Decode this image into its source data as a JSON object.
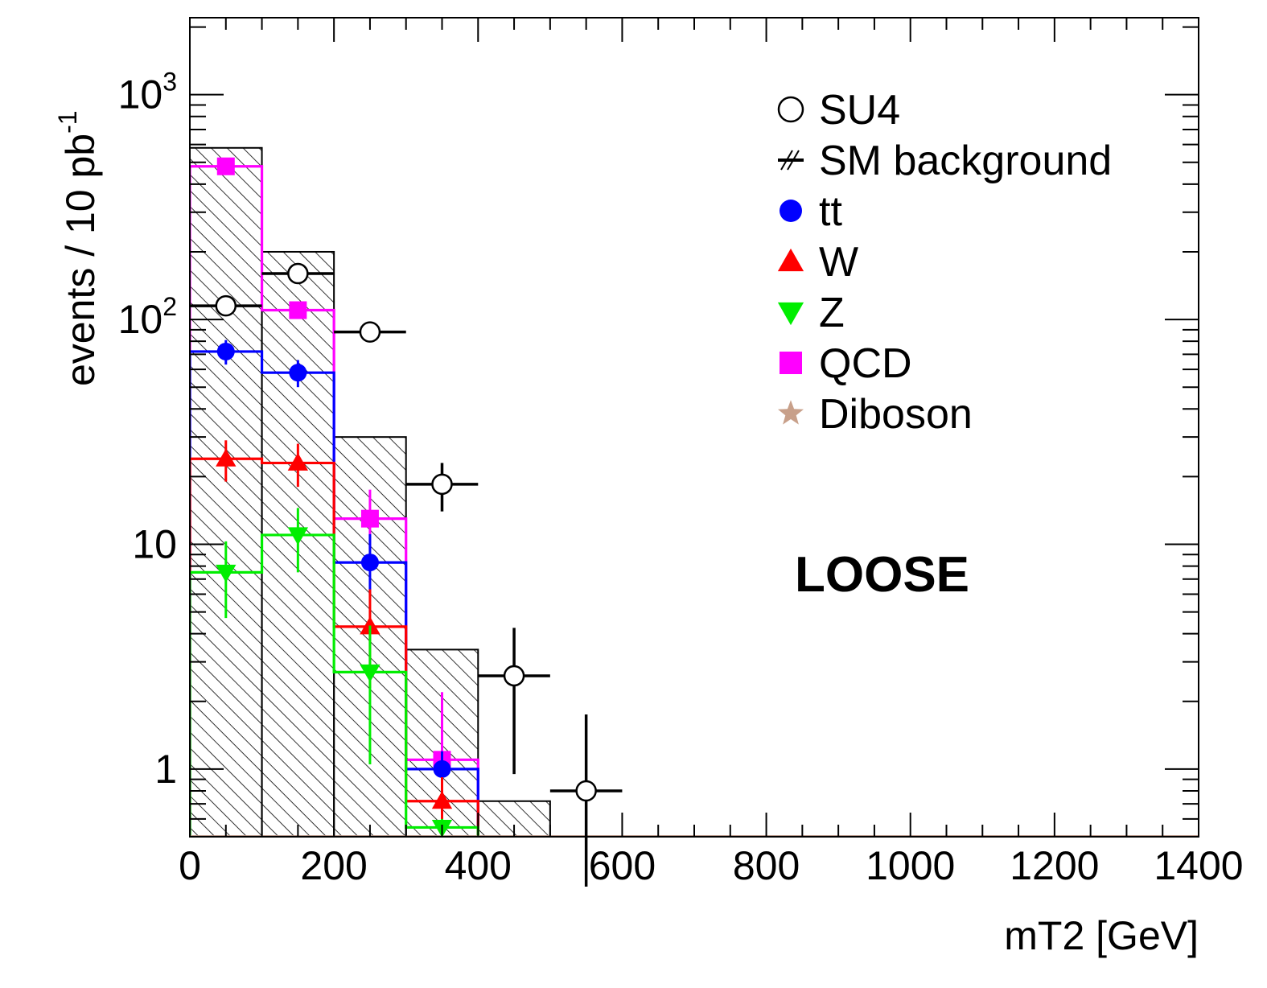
{
  "chart_data": {
    "type": "step-histogram",
    "xlabel": "mT2 [GeV]",
    "ylabel": "events / 10 pb",
    "ylabel_superscript": "-1",
    "xlim": [
      0,
      1400
    ],
    "ylim": [
      0.5,
      2200
    ],
    "yscale": "log",
    "grid": false,
    "legend_position": "top-right",
    "annotation": "LOOSE",
    "x_ticks": [
      "0",
      "200",
      "400",
      "600",
      "800",
      "1000",
      "1200",
      "1400"
    ],
    "x_tick_values": [
      0,
      200,
      400,
      600,
      800,
      1000,
      1200,
      1400
    ],
    "y_ticks": [
      {
        "value": 1,
        "base": "1",
        "exp": ""
      },
      {
        "value": 10,
        "base": "10",
        "exp": ""
      },
      {
        "value": 100,
        "base": "10",
        "exp": "2"
      },
      {
        "value": 1000,
        "base": "10",
        "exp": "3"
      }
    ],
    "bin_edges": [
      0,
      100,
      200,
      300,
      400,
      500,
      600,
      700,
      800,
      900,
      1000,
      1100,
      1200,
      1300,
      1400
    ],
    "series": [
      {
        "name": "SM background",
        "style": "hatched",
        "color": "#000000",
        "values": [
          580,
          200,
          30,
          3.4,
          0.72,
          0,
          0,
          0,
          0,
          0,
          0,
          0,
          0,
          0
        ]
      },
      {
        "name": "QCD",
        "style": "step",
        "marker": "square",
        "color": "#ff00ff",
        "values": [
          480,
          110,
          13,
          1.1,
          0,
          0,
          0,
          0,
          0,
          0,
          0,
          0,
          0,
          0
        ],
        "errors": [
          [
            0,
            0
          ],
          [
            0,
            0
          ],
          [
            3.5,
            4.5
          ],
          [
            0.55,
            1.1
          ],
          [
            0,
            0
          ],
          [
            0,
            0
          ],
          [
            0,
            0
          ],
          [
            0,
            0
          ],
          [
            0,
            0
          ],
          [
            0,
            0
          ],
          [
            0,
            0
          ],
          [
            0,
            0
          ],
          [
            0,
            0
          ],
          [
            0,
            0
          ]
        ]
      },
      {
        "name": "tt",
        "style": "step",
        "marker": "circle",
        "color": "#0000ff",
        "values": [
          72,
          58,
          8.3,
          1.0,
          0,
          0,
          0,
          0,
          0,
          0,
          0,
          0,
          0,
          0
        ],
        "errors": [
          [
            9,
            9
          ],
          [
            8,
            8
          ],
          [
            2.3,
            2.8
          ],
          [
            0.2,
            0.2
          ],
          [
            0,
            0
          ],
          [
            0,
            0
          ],
          [
            0,
            0
          ],
          [
            0,
            0
          ],
          [
            0,
            0
          ],
          [
            0,
            0
          ],
          [
            0,
            0
          ],
          [
            0,
            0
          ],
          [
            0,
            0
          ],
          [
            0,
            0
          ]
        ]
      },
      {
        "name": "W",
        "style": "step",
        "marker": "triangle-up",
        "color": "#ff0000",
        "values": [
          24,
          23,
          4.3,
          0.72,
          0,
          0,
          0,
          0,
          0,
          0,
          0,
          0,
          0,
          0
        ],
        "errors": [
          [
            5,
            5
          ],
          [
            5,
            5
          ],
          [
            2.0,
            2.0
          ],
          [
            0.2,
            0.2
          ],
          [
            0,
            0
          ],
          [
            0,
            0
          ],
          [
            0,
            0
          ],
          [
            0,
            0
          ],
          [
            0,
            0
          ],
          [
            0,
            0
          ],
          [
            0,
            0
          ],
          [
            0,
            0
          ],
          [
            0,
            0
          ],
          [
            0,
            0
          ]
        ]
      },
      {
        "name": "Z",
        "style": "step",
        "marker": "triangle-down",
        "color": "#00ee00",
        "values": [
          7.5,
          11,
          2.7,
          0.55,
          0,
          0,
          0,
          0,
          0,
          0,
          0,
          0,
          0,
          0
        ],
        "errors": [
          [
            2.8,
            2.8
          ],
          [
            3.5,
            3.5
          ],
          [
            1.65,
            1.65
          ],
          [
            0.05,
            0.05
          ],
          [
            0,
            0
          ],
          [
            0,
            0
          ],
          [
            0,
            0
          ],
          [
            0,
            0
          ],
          [
            0,
            0
          ],
          [
            0,
            0
          ],
          [
            0,
            0
          ],
          [
            0,
            0
          ],
          [
            0,
            0
          ],
          [
            0,
            0
          ]
        ]
      },
      {
        "name": "Diboson",
        "style": "step",
        "marker": "star",
        "color": "#c8a08a",
        "values": [
          0,
          0,
          0,
          0,
          0,
          0,
          0,
          0,
          0,
          0,
          0,
          0,
          0,
          0
        ]
      },
      {
        "name": "SU4",
        "style": "points",
        "marker": "open-circle",
        "color": "#000000",
        "x": [
          50,
          150,
          250,
          350,
          450,
          550
        ],
        "x_halfwidth": 50,
        "values": [
          115,
          160,
          88,
          18.5,
          2.6,
          0.8
        ],
        "errors": [
          [
            10,
            10
          ],
          [
            12,
            12
          ],
          [
            8,
            8
          ],
          [
            4.5,
            4.5
          ],
          [
            1.65,
            1.65
          ],
          [
            0.5,
            0.95
          ]
        ]
      }
    ],
    "legend_entries": [
      {
        "label": "SU4",
        "marker": "open-circle",
        "color": "#000000"
      },
      {
        "label": "SM background",
        "marker": "hatch",
        "color": "#000000"
      },
      {
        "label": "tt",
        "marker": "circle",
        "color": "#0000ff"
      },
      {
        "label": "W",
        "marker": "triangle-up",
        "color": "#ff0000"
      },
      {
        "label": "Z",
        "marker": "triangle-down",
        "color": "#00ee00"
      },
      {
        "label": "QCD",
        "marker": "square",
        "color": "#ff00ff"
      },
      {
        "label": "Diboson",
        "marker": "star",
        "color": "#c8a08a"
      }
    ]
  }
}
